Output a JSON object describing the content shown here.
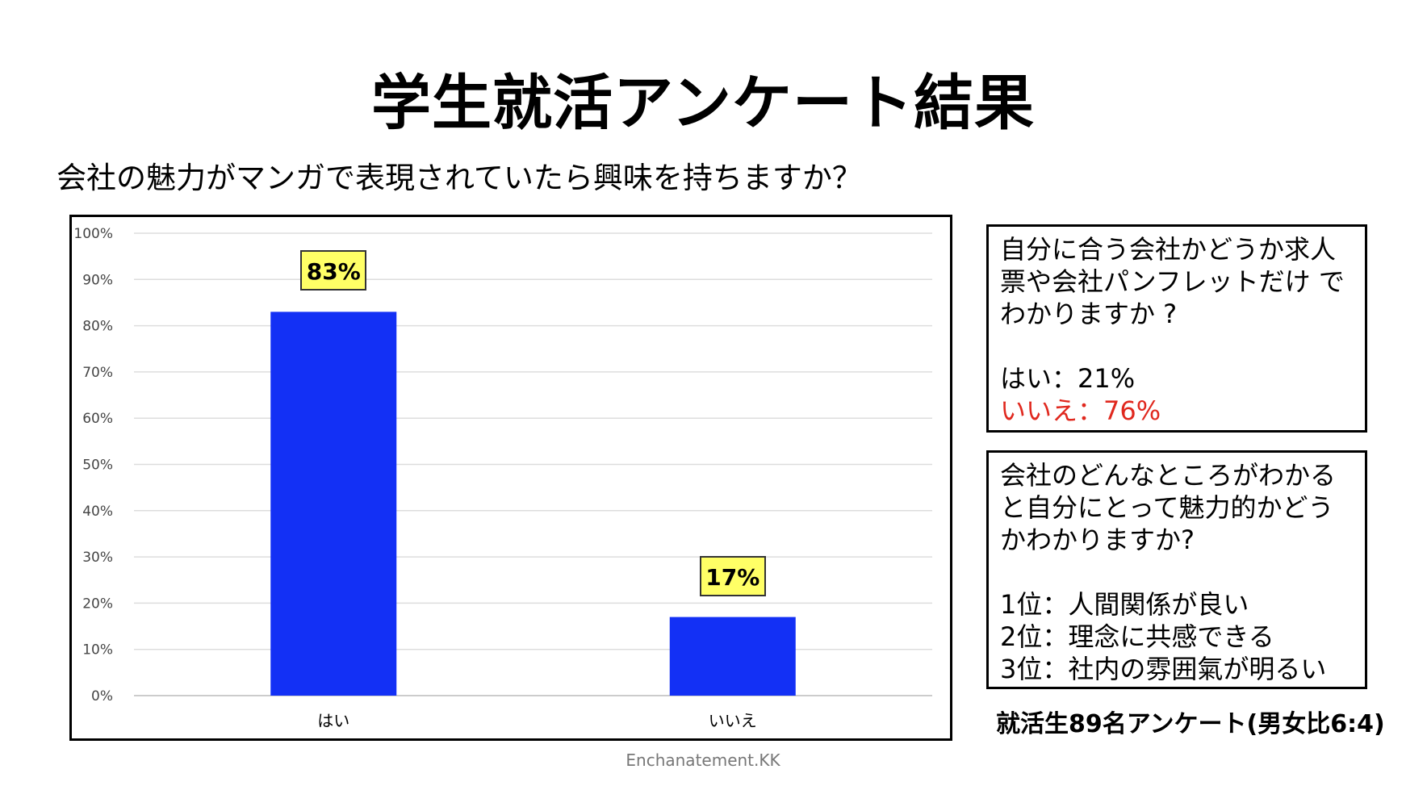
{
  "title": "学生就活アンケート結果",
  "question": "会社の魅力がマンガで表現されていたら興味を持ちますか？",
  "chart_data": {
    "type": "bar",
    "categories": [
      "はい",
      "いいえ"
    ],
    "values": [
      83,
      17
    ],
    "value_labels": [
      "83%",
      "17%"
    ],
    "ylim": [
      0,
      100
    ],
    "yticks": [
      "0%",
      "10%",
      "20%",
      "30%",
      "40%",
      "50%",
      "60%",
      "70%",
      "80%",
      "90%",
      "100%"
    ],
    "grid": true,
    "bar_color": "#1330f5",
    "label_bg": "#ffff66"
  },
  "box1": {
    "question": "自分に合う会社かどうか求人票や会社パンフレットだけ でわかりますか ?",
    "answer_yes": "はい：21%",
    "answer_no": "いいえ：76%",
    "answer_no_color": "#e0281e"
  },
  "box2": {
    "question": "会社のどんなところがわかると自分にとって魅力的かどうかわかりますか?",
    "rank1": "1位：人間関係が良い",
    "rank2": "2位：理念に共感できる",
    "rank3": "3位：社内の雰囲氣が明るい"
  },
  "note": "就活生89名アンケート(男女比6:4)",
  "credit": "Enchanatement.KK"
}
